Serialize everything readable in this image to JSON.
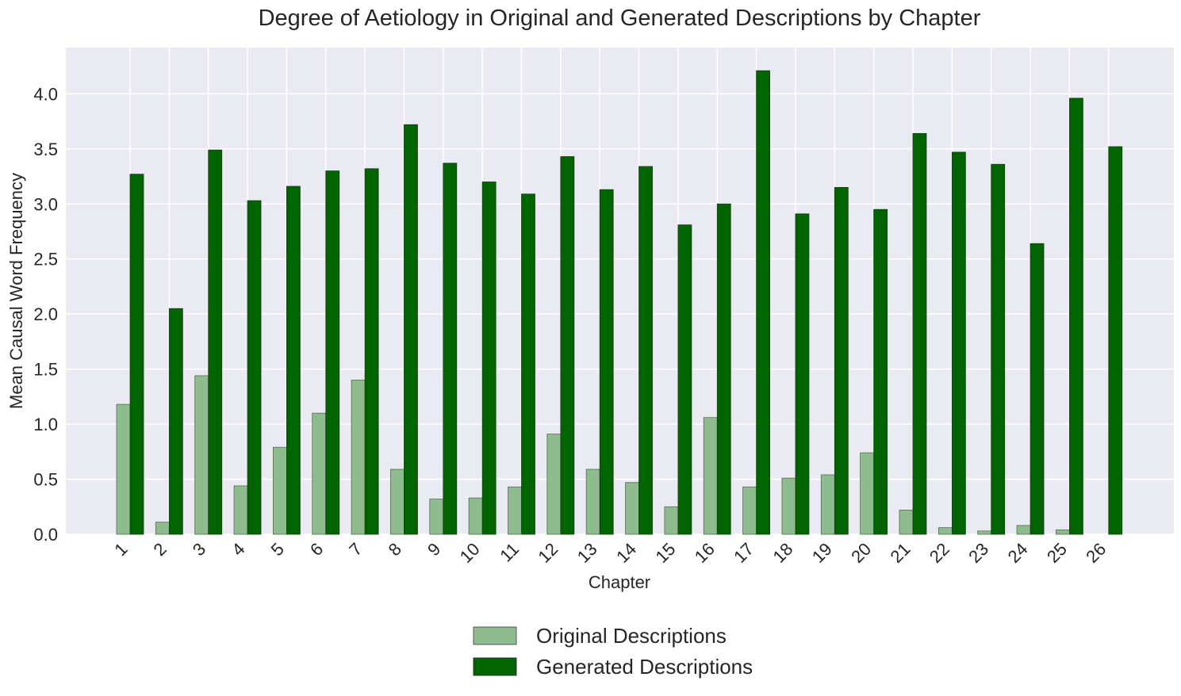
{
  "chart_data": {
    "type": "bar",
    "title": "Degree of Aetiology in Original and Generated Descriptions by Chapter",
    "xlabel": "Chapter",
    "ylabel": "Mean Causal Word Frequency",
    "categories": [
      "1",
      "2",
      "3",
      "4",
      "5",
      "6",
      "7",
      "8",
      "9",
      "10",
      "11",
      "12",
      "13",
      "14",
      "15",
      "16",
      "17",
      "18",
      "19",
      "20",
      "21",
      "22",
      "23",
      "24",
      "25",
      "26"
    ],
    "ylim": [
      0,
      4.42
    ],
    "yticks": [
      "0.0",
      "0.5",
      "1.0",
      "1.5",
      "2.0",
      "2.5",
      "3.0",
      "3.5",
      "4.0"
    ],
    "grid": true,
    "legend_position": "bottom-center",
    "series": [
      {
        "name": "Original Descriptions",
        "color": "#8fbc8f",
        "values": [
          1.18,
          0.11,
          1.44,
          0.44,
          0.79,
          1.1,
          1.4,
          0.59,
          0.32,
          0.33,
          0.43,
          0.91,
          0.59,
          0.47,
          0.25,
          1.06,
          0.43,
          0.51,
          0.54,
          0.74,
          0.22,
          0.06,
          0.03,
          0.08,
          0.04,
          0.0
        ]
      },
      {
        "name": "Generated Descriptions",
        "color": "#006400",
        "values": [
          3.27,
          2.05,
          3.49,
          3.03,
          3.16,
          3.3,
          3.32,
          3.72,
          3.37,
          3.2,
          3.09,
          3.43,
          3.13,
          3.34,
          2.81,
          3.0,
          4.21,
          2.91,
          3.15,
          2.95,
          3.64,
          3.47,
          3.36,
          2.64,
          3.96,
          3.52
        ]
      }
    ]
  }
}
